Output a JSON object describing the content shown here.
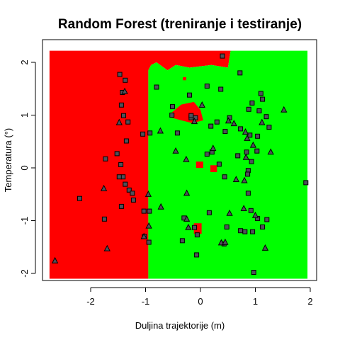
{
  "chart_data": {
    "type": "scatter",
    "title": "Random Forest (treniranje i testiranje)",
    "xlabel": "Duljina trajektorije (m)",
    "ylabel": "Temperatura (°)",
    "xlim": [
      -2.8,
      2.05
    ],
    "ylim": [
      -2.2,
      2.3
    ],
    "xticks": [
      "-2",
      "-1",
      "0",
      "1",
      "2"
    ],
    "xtick_values": [
      -2,
      -1,
      0,
      1,
      2
    ],
    "yticks": [
      "-2",
      "-1",
      "0",
      "1",
      "2"
    ],
    "ytick_values": [
      -2,
      -1,
      0,
      1,
      2
    ],
    "grid": false,
    "legend": "none",
    "colors": {
      "red_region": "#ff0000",
      "green_region": "#00ff00",
      "point_fill": "#50505a",
      "point_stroke": "#000000"
    },
    "regions": [
      {
        "class": "red",
        "polygon": [
          [
            -2.75,
            -2.1
          ],
          [
            -0.95,
            -2.1
          ],
          [
            -0.95,
            1.85
          ],
          [
            -0.9,
            1.95
          ],
          [
            -0.8,
            2.0
          ],
          [
            -0.6,
            1.85
          ],
          [
            -0.45,
            1.95
          ],
          [
            -0.2,
            1.9
          ],
          [
            0.2,
            1.95
          ],
          [
            0.5,
            1.9
          ],
          [
            0.55,
            2.22
          ],
          [
            -2.75,
            2.22
          ]
        ]
      },
      {
        "class": "green",
        "polygon": [
          [
            -0.95,
            -2.1
          ],
          [
            1.95,
            -2.1
          ],
          [
            1.95,
            2.22
          ],
          [
            0.55,
            2.22
          ],
          [
            0.5,
            1.9
          ],
          [
            0.2,
            1.95
          ],
          [
            -0.2,
            1.9
          ],
          [
            -0.45,
            1.95
          ],
          [
            -0.6,
            1.85
          ],
          [
            -0.8,
            2.0
          ],
          [
            -0.9,
            1.95
          ],
          [
            -0.95,
            1.85
          ]
        ]
      },
      {
        "class": "red",
        "polygon": [
          [
            -0.52,
            1.05
          ],
          [
            -0.35,
            1.2
          ],
          [
            -0.12,
            1.25
          ],
          [
            0.0,
            1.1
          ],
          [
            0.05,
            0.9
          ],
          [
            -0.15,
            0.85
          ],
          [
            -0.35,
            0.9
          ],
          [
            -0.52,
            0.95
          ]
        ]
      },
      {
        "class": "red",
        "polygon": [
          [
            -0.08,
            0.12
          ],
          [
            0.05,
            0.12
          ],
          [
            0.05,
            0.0
          ],
          [
            -0.08,
            0.0
          ]
        ]
      },
      {
        "class": "red",
        "polygon": [
          [
            0.18,
            0.05
          ],
          [
            0.3,
            0.05
          ],
          [
            0.3,
            -0.08
          ],
          [
            0.18,
            -0.08
          ]
        ]
      },
      {
        "class": "red",
        "polygon": [
          [
            -0.12,
            -1.05
          ],
          [
            0.02,
            -1.05
          ],
          [
            0.02,
            -1.25
          ],
          [
            -0.12,
            -1.25
          ]
        ]
      },
      {
        "class": "red",
        "polygon": [
          [
            -0.32,
            1.72
          ],
          [
            -0.26,
            1.72
          ],
          [
            -0.26,
            1.66
          ],
          [
            -0.32,
            1.66
          ]
        ]
      }
    ],
    "series": [
      {
        "shape": "square",
        "points": [
          [
            0.4,
            2.12
          ],
          [
            -1.47,
            1.77
          ],
          [
            -1.37,
            1.66
          ],
          [
            -1.42,
            1.43
          ],
          [
            -1.44,
            1.19
          ],
          [
            -1.4,
            0.99
          ],
          [
            -1.32,
            0.87
          ],
          [
            -1.35,
            0.51
          ],
          [
            -1.05,
            0.64
          ],
          [
            -0.92,
            0.66
          ],
          [
            -0.8,
            1.53
          ],
          [
            -1.52,
            0.27
          ],
          [
            -1.73,
            0.17
          ],
          [
            -1.45,
            0.06
          ],
          [
            -1.41,
            -0.17
          ],
          [
            -1.48,
            -0.17
          ],
          [
            -1.37,
            -0.31
          ],
          [
            -1.3,
            -0.42
          ],
          [
            -1.24,
            -0.48
          ],
          [
            -1.22,
            -0.61
          ],
          [
            -1.44,
            -0.73
          ],
          [
            -1.03,
            -0.82
          ],
          [
            -0.93,
            -0.82
          ],
          [
            -1.75,
            -0.97
          ],
          [
            -1.02,
            -1.3
          ],
          [
            -0.94,
            -1.41
          ],
          [
            -2.2,
            -0.58
          ],
          [
            -0.2,
            1.38
          ],
          [
            0.12,
            1.55
          ],
          [
            0.37,
            1.49
          ],
          [
            0.72,
            1.8
          ],
          [
            1.1,
            1.41
          ],
          [
            1.13,
            1.3
          ],
          [
            0.94,
            1.23
          ],
          [
            0.88,
            1.11
          ],
          [
            1.07,
            1.08
          ],
          [
            0.53,
            0.95
          ],
          [
            0.3,
            0.87
          ],
          [
            0.19,
            0.79
          ],
          [
            -0.17,
            0.95
          ],
          [
            -0.17,
            0.99
          ],
          [
            -0.09,
            0.95
          ],
          [
            -0.52,
            1.0
          ],
          [
            -0.42,
            0.66
          ],
          [
            0.45,
            0.69
          ],
          [
            0.73,
            0.74
          ],
          [
            0.9,
            0.62
          ],
          [
            1.04,
            0.6
          ],
          [
            1.25,
            0.77
          ],
          [
            1.2,
            0.97
          ],
          [
            0.68,
            0.23
          ],
          [
            0.84,
            0.3
          ],
          [
            1.03,
            0.32
          ],
          [
            0.21,
            0.3
          ],
          [
            0.12,
            0.26
          ],
          [
            0.34,
            0.07
          ],
          [
            0.93,
            0.12
          ],
          [
            0.87,
            -0.05
          ],
          [
            0.44,
            -0.17
          ],
          [
            0.86,
            -0.12
          ],
          [
            1.92,
            -0.28
          ],
          [
            0.87,
            -0.48
          ],
          [
            0.92,
            -0.81
          ],
          [
            0.16,
            -0.85
          ],
          [
            -0.33,
            -1.38
          ],
          [
            -0.3,
            -0.95
          ],
          [
            -0.11,
            -1.13
          ],
          [
            -0.06,
            -1.27
          ],
          [
            0.48,
            -1.12
          ],
          [
            0.73,
            -1.19
          ],
          [
            0.81,
            -1.21
          ],
          [
            0.95,
            -1.21
          ],
          [
            1.13,
            -1.12
          ],
          [
            1.04,
            -0.96
          ],
          [
            1.21,
            -0.98
          ],
          [
            0.43,
            -1.44
          ],
          [
            -0.07,
            -1.65
          ],
          [
            0.97,
            -1.98
          ],
          [
            -0.51,
            1.16
          ]
        ]
      },
      {
        "shape": "triangle",
        "points": [
          [
            -1.48,
            0.86
          ],
          [
            -1.38,
            1.45
          ],
          [
            -0.11,
            0.88
          ],
          [
            0.03,
            1.19
          ],
          [
            0.51,
            0.89
          ],
          [
            0.61,
            0.84
          ],
          [
            0.82,
            0.68
          ],
          [
            1.12,
            0.86
          ],
          [
            1.52,
            1.1
          ],
          [
            1.28,
            0.3
          ],
          [
            0.85,
            0.56
          ],
          [
            0.23,
            0.37
          ],
          [
            0.96,
            0.43
          ],
          [
            0.83,
            0.2
          ],
          [
            -0.73,
            0.7
          ],
          [
            -0.45,
            0.32
          ],
          [
            -0.26,
            0.16
          ],
          [
            0.65,
            -0.22
          ],
          [
            0.8,
            -0.24
          ],
          [
            -0.95,
            -0.5
          ],
          [
            -0.72,
            -0.74
          ],
          [
            -0.25,
            -0.48
          ],
          [
            -0.25,
            -0.97
          ],
          [
            -0.22,
            -1.13
          ],
          [
            0.53,
            -0.86
          ],
          [
            1.0,
            -0.9
          ],
          [
            0.79,
            -0.77
          ],
          [
            -0.94,
            -1.1
          ],
          [
            -1.03,
            -1.3
          ],
          [
            0.38,
            -1.42
          ],
          [
            0.45,
            -1.41
          ],
          [
            1.18,
            -1.52
          ],
          [
            -1.7,
            -1.53
          ],
          [
            -2.65,
            -1.76
          ],
          [
            -1.76,
            -0.39
          ]
        ]
      }
    ]
  }
}
